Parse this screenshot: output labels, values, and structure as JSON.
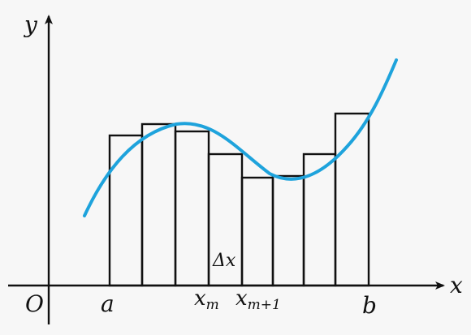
{
  "labels": {
    "y_axis": "y",
    "x_axis": "x",
    "origin": "O",
    "a": "a",
    "b": "b",
    "x_m": "x",
    "x_m_sub": "m",
    "x_m1": "x",
    "x_m1_sub": "m+1",
    "delta_x": "Δx"
  },
  "colors": {
    "curve": "#1ea3dc",
    "axes": "#111111",
    "rectangles": "#111111",
    "background": "#f7f7f7"
  }
}
